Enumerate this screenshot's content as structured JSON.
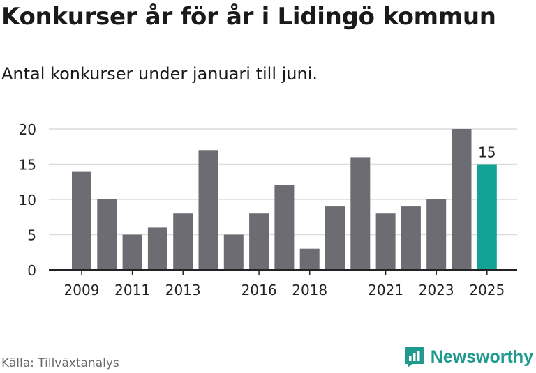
{
  "title": "Konkurser år för år i Lidingö kommun",
  "subtitle": "Antal konkurser under januari till juni.",
  "source": "Källa: Tillväxtanalys",
  "brand": "Newsworthy",
  "colors": {
    "bar": "#6d6c72",
    "highlight": "#12a396",
    "grid": "#dcdcdc",
    "axis": "#222222",
    "brand": "#1f9a8e"
  },
  "chart_data": {
    "type": "bar",
    "title": "Konkurser år för år i Lidingö kommun",
    "subtitle": "Antal konkurser under januari till juni.",
    "categories": [
      "2009",
      "2010",
      "2011",
      "2012",
      "2013",
      "2014",
      "2015",
      "2016",
      "2017",
      "2018",
      "2019",
      "2020",
      "2021",
      "2022",
      "2023",
      "2024",
      "2025"
    ],
    "values": [
      14,
      10,
      5,
      6,
      8,
      17,
      5,
      8,
      12,
      3,
      9,
      16,
      8,
      9,
      10,
      20,
      15
    ],
    "x_tick_labels": [
      "2009",
      "2011",
      "2013",
      "2016",
      "2018",
      "2021",
      "2023",
      "2025"
    ],
    "y_ticks": [
      0,
      5,
      10,
      15,
      20
    ],
    "ylim": [
      0,
      20
    ],
    "grid": true,
    "highlight": {
      "category": "2025",
      "label": "15"
    }
  }
}
